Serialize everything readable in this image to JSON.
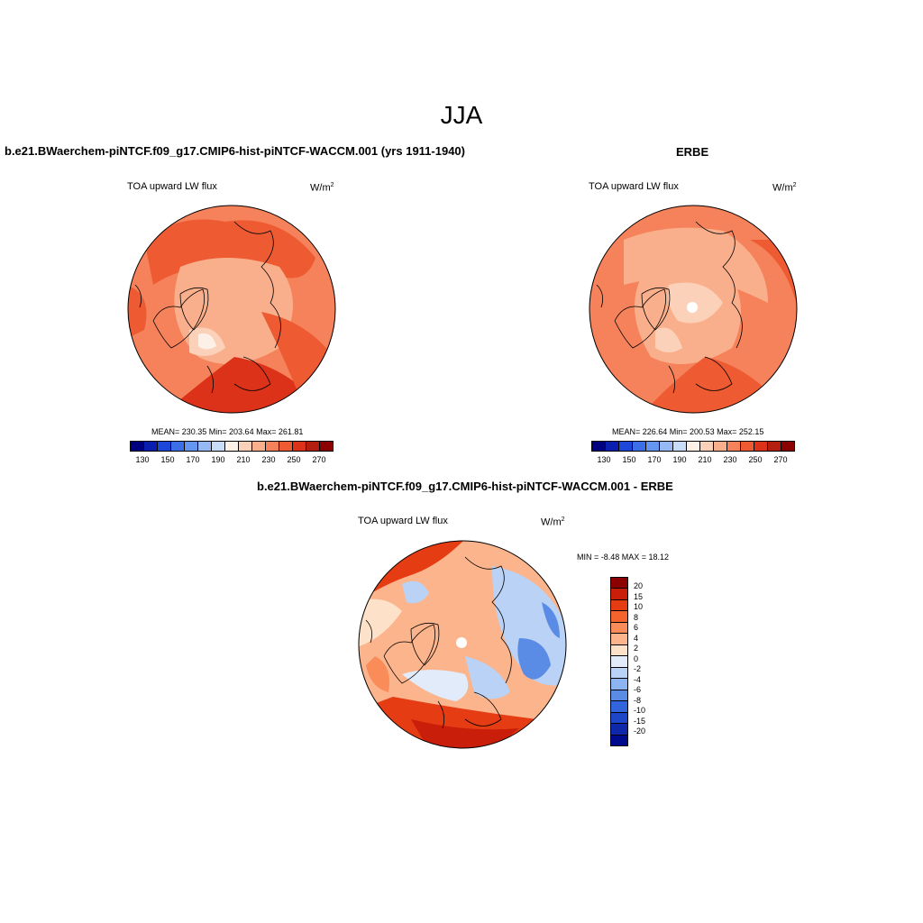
{
  "main_title": "JJA",
  "panels": [
    {
      "title": "b.e21.BWaerchem-piNTCF.f09_g17.CMIP6-hist-piNTCF-WACCM.001 (yrs 1911-1940)",
      "field": "TOA upward LW flux",
      "units": "W/m",
      "units_sup": "2",
      "stats": "MEAN= 230.35  Min= 203.64  Max= 261.81"
    },
    {
      "title": "ERBE",
      "field": "TOA upward LW flux",
      "units": "W/m",
      "units_sup": "2",
      "stats": "MEAN= 226.64  Min= 200.53  Max= 252.15"
    },
    {
      "title": "b.e21.BWaerchem-piNTCF.f09_g17.CMIP6-hist-piNTCF-WACCM.001 - ERBE",
      "field": "TOA upward LW flux",
      "units": "W/m",
      "units_sup": "2",
      "stats": "MIN =  -8.48 MAX =  18.12"
    }
  ],
  "abs_colorbar": {
    "colors": [
      "#00007f",
      "#0a1fb0",
      "#1e46d8",
      "#3c6ee8",
      "#6496f0",
      "#96b9f5",
      "#c8dcfa",
      "#fdf0e6",
      "#fbd2b9",
      "#f9af8c",
      "#f5825a",
      "#ee5a32",
      "#dc3219",
      "#b41e0f",
      "#8b0000"
    ],
    "tick_labels": [
      "130",
      "150",
      "170",
      "190",
      "210",
      "230",
      "250",
      "270"
    ]
  },
  "diff_colorbar": {
    "colors": [
      "#8b0000",
      "#c81e0a",
      "#e63c14",
      "#f5642d",
      "#fa8c5a",
      "#fcb48c",
      "#fde1c8",
      "#e1ebfa",
      "#b9d2f5",
      "#8cb4f0",
      "#5a8ce6",
      "#3264dc",
      "#1e46c8",
      "#0f28aa",
      "#000a8c"
    ],
    "tick_labels": [
      "20",
      "15",
      "10",
      "8",
      "6",
      "4",
      "2",
      "0",
      "-2",
      "-4",
      "-6",
      "-8",
      "-10",
      "-15",
      "-20"
    ]
  }
}
